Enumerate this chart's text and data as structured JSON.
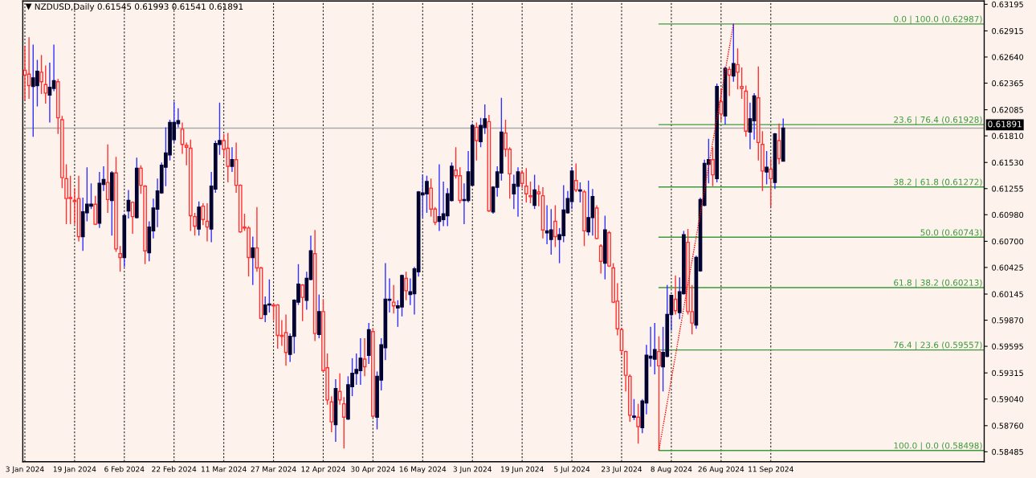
{
  "chart_data": {
    "type": "candlestick",
    "title": "NZDUSD,Daily 0.61545 0.61993 0.61541 0.61891",
    "categories": [
      "3 Jan 2024",
      null,
      null,
      null,
      null,
      null,
      null,
      null,
      null,
      null,
      null,
      null,
      "19 Jan 2024",
      null,
      null,
      null,
      null,
      null,
      null,
      null,
      null,
      null,
      null,
      null,
      "6 Feb 2024",
      null,
      null,
      null,
      null,
      null,
      null,
      null,
      null,
      null,
      null,
      null,
      "22 Feb 2024",
      null,
      null,
      null,
      null,
      null,
      null,
      null,
      null,
      null,
      null,
      null,
      "11 Mar 2024",
      null,
      null,
      null,
      null,
      null,
      null,
      null,
      null,
      null,
      null,
      null,
      "27 Mar 2024",
      null,
      null,
      null,
      null,
      null,
      null,
      null,
      null,
      null,
      null,
      null,
      "12 Apr 2024",
      null,
      null,
      null,
      null,
      null,
      null,
      null,
      null,
      null,
      null,
      null,
      "30 Apr 2024",
      null,
      null,
      null,
      null,
      null,
      null,
      null,
      null,
      null,
      null,
      null,
      "16 May 2024",
      null,
      null,
      null,
      null,
      null,
      null,
      null,
      null,
      null,
      null,
      null,
      "3 Jun 2024",
      null,
      null,
      null,
      null,
      null,
      null,
      null,
      null,
      null,
      null,
      null,
      "19 Jun 2024",
      null,
      null,
      null,
      null,
      null,
      null,
      null,
      null,
      null,
      null,
      null,
      "5 Jul 2024",
      null,
      null,
      null,
      null,
      null,
      null,
      null,
      null,
      null,
      null,
      null,
      "23 Jul 2024",
      null,
      null,
      null,
      null,
      null,
      null,
      null,
      null,
      null,
      null,
      null,
      "8 Aug 2024",
      null,
      null,
      null,
      null,
      null,
      null,
      null,
      null,
      null,
      null,
      null,
      "26 Aug 2024",
      null,
      null,
      null,
      null,
      null,
      null,
      null,
      null,
      null,
      null,
      null,
      "11 Sep 2024",
      null,
      null,
      null,
      null,
      null,
      null,
      null,
      null,
      null,
      null,
      null,
      null,
      null,
      null,
      null,
      null,
      null,
      null,
      null,
      null,
      null,
      null,
      null,
      null,
      null,
      null,
      null,
      null,
      null,
      null,
      null,
      null,
      null,
      null,
      null,
      null,
      null,
      null,
      null,
      null,
      null,
      null,
      null,
      null,
      null,
      null,
      null,
      null,
      null,
      null,
      null
    ],
    "ohlc": [
      [
        0.625,
        0.6276,
        0.6218,
        0.6245
      ],
      [
        0.6246,
        0.6285,
        0.622,
        0.6234
      ],
      [
        0.6233,
        0.6277,
        0.618,
        0.6242
      ],
      [
        0.6234,
        0.6261,
        0.6212,
        0.6249
      ],
      [
        0.6248,
        0.6266,
        0.6225,
        0.6238
      ],
      [
        0.6235,
        0.6255,
        0.6215,
        0.6226
      ],
      [
        0.6224,
        0.6258,
        0.6195,
        0.6232
      ],
      [
        0.6231,
        0.6277,
        0.6228,
        0.6239
      ],
      [
        0.6238,
        0.6241,
        0.6183,
        0.62
      ],
      [
        0.6198,
        0.6202,
        0.6126,
        0.6137
      ],
      [
        0.6136,
        0.6151,
        0.6088,
        0.6115
      ],
      [
        0.6116,
        0.6139,
        0.6088,
        0.6115
      ],
      [
        0.6113,
        0.6126,
        0.6088,
        0.6112
      ],
      [
        0.6115,
        0.6139,
        0.607,
        0.6075
      ],
      [
        0.6075,
        0.6116,
        0.606,
        0.6101
      ],
      [
        0.61,
        0.6148,
        0.6091,
        0.6109
      ],
      [
        0.6107,
        0.6131,
        0.6104,
        0.6109
      ],
      [
        0.6109,
        0.6118,
        0.6087,
        0.6088
      ],
      [
        0.6089,
        0.6143,
        0.6084,
        0.6131
      ],
      [
        0.613,
        0.6149,
        0.6123,
        0.6135
      ],
      [
        0.6132,
        0.6172,
        0.61,
        0.6114
      ],
      [
        0.6113,
        0.6144,
        0.6076,
        0.6142
      ],
      [
        0.6142,
        0.6159,
        0.6059,
        0.6062
      ],
      [
        0.6057,
        0.6065,
        0.6038,
        0.6053
      ],
      [
        0.6053,
        0.6099,
        0.6043,
        0.6097
      ],
      [
        0.6102,
        0.6124,
        0.6094,
        0.6113
      ],
      [
        0.6111,
        0.6112,
        0.6078,
        0.6096
      ],
      [
        0.6095,
        0.6158,
        0.6094,
        0.6147
      ],
      [
        0.6147,
        0.615,
        0.612,
        0.6129
      ],
      [
        0.6128,
        0.6129,
        0.6046,
        0.606
      ],
      [
        0.6058,
        0.6091,
        0.6049,
        0.6085
      ],
      [
        0.6081,
        0.6115,
        0.6073,
        0.6105
      ],
      [
        0.6104,
        0.6136,
        0.6085,
        0.6123
      ],
      [
        0.6121,
        0.6153,
        0.612,
        0.615
      ],
      [
        0.6148,
        0.619,
        0.6128,
        0.6163
      ],
      [
        0.6161,
        0.6198,
        0.6155,
        0.6195
      ],
      [
        0.6177,
        0.6217,
        0.6174,
        0.6195
      ],
      [
        0.6194,
        0.621,
        0.619,
        0.6197
      ],
      [
        0.6188,
        0.6195,
        0.6162,
        0.6172
      ],
      [
        0.6171,
        0.6174,
        0.615,
        0.6169
      ],
      [
        0.6168,
        0.6177,
        0.6081,
        0.6097
      ],
      [
        0.6096,
        0.61,
        0.6076,
        0.6086
      ],
      [
        0.6083,
        0.6112,
        0.6076,
        0.6106
      ],
      [
        0.6107,
        0.611,
        0.6087,
        0.6093
      ],
      [
        0.6091,
        0.611,
        0.607,
        0.6085
      ],
      [
        0.6083,
        0.6143,
        0.6069,
        0.6128
      ],
      [
        0.6125,
        0.6176,
        0.6121,
        0.6173
      ],
      [
        0.6172,
        0.6216,
        0.6161,
        0.6176
      ],
      [
        0.6176,
        0.6183,
        0.6159,
        0.6167
      ],
      [
        0.6168,
        0.6184,
        0.6132,
        0.6149
      ],
      [
        0.6149,
        0.6169,
        0.6143,
        0.6156
      ],
      [
        0.6156,
        0.6174,
        0.6121,
        0.6129
      ],
      [
        0.6129,
        0.613,
        0.6079,
        0.608
      ],
      [
        0.6085,
        0.6099,
        0.6081,
        0.6084
      ],
      [
        0.6084,
        0.6086,
        0.6033,
        0.6053
      ],
      [
        0.6053,
        0.6075,
        0.6024,
        0.6063
      ],
      [
        0.6063,
        0.6106,
        0.6038,
        0.6042
      ],
      [
        0.6042,
        0.6043,
        0.5988,
        0.5989
      ],
      [
        0.5993,
        0.6012,
        0.5985,
        0.6003
      ],
      [
        0.6003,
        0.603,
        0.5995,
        0.6004
      ],
      [
        0.6003,
        0.6005,
        0.5987,
        0.6002
      ],
      [
        0.6003,
        0.6004,
        0.5957,
        0.5971
      ],
      [
        0.5971,
        0.5987,
        0.596,
        0.597
      ],
      [
        0.5974,
        0.5993,
        0.5939,
        0.5953
      ],
      [
        0.5951,
        0.5973,
        0.5943,
        0.597
      ],
      [
        0.597,
        0.6009,
        0.5952,
        0.6008
      ],
      [
        0.6006,
        0.6046,
        0.6003,
        0.6025
      ],
      [
        0.6024,
        0.6025,
        0.5986,
        0.6011
      ],
      [
        0.6008,
        0.6038,
        0.5998,
        0.6031
      ],
      [
        0.603,
        0.6076,
        0.6029,
        0.606
      ],
      [
        0.6057,
        0.6082,
        0.5965,
        0.5973
      ],
      [
        0.5972,
        0.6014,
        0.5968,
        0.5996
      ],
      [
        0.5996,
        0.6009,
        0.5932,
        0.5934
      ],
      [
        0.5937,
        0.5952,
        0.5898,
        0.5903
      ],
      [
        0.5901,
        0.5907,
        0.5869,
        0.588
      ],
      [
        0.5877,
        0.5925,
        0.5859,
        0.5915
      ],
      [
        0.5912,
        0.5931,
        0.5898,
        0.5903
      ],
      [
        0.5899,
        0.5906,
        0.5852,
        0.5885
      ],
      [
        0.5883,
        0.5928,
        0.5882,
        0.5919
      ],
      [
        0.5917,
        0.5947,
        0.5907,
        0.5931
      ],
      [
        0.5931,
        0.5952,
        0.5919,
        0.5935
      ],
      [
        0.5934,
        0.5968,
        0.5919,
        0.5947
      ],
      [
        0.5946,
        0.5968,
        0.5928,
        0.5938
      ],
      [
        0.595,
        0.5984,
        0.5941,
        0.5977
      ],
      [
        0.5975,
        0.5979,
        0.5885,
        0.5886
      ],
      [
        0.5885,
        0.5933,
        0.5872,
        0.5928
      ],
      [
        0.5924,
        0.5968,
        0.5913,
        0.5961
      ],
      [
        0.5958,
        0.6047,
        0.5945,
        0.6009
      ],
      [
        0.6008,
        0.6031,
        0.5995,
        0.6009
      ],
      [
        0.6006,
        0.6024,
        0.5994,
        0.6002
      ],
      [
        0.6,
        0.6008,
        0.598,
        0.6002
      ],
      [
        0.6001,
        0.6035,
        0.5991,
        0.6034
      ],
      [
        0.6031,
        0.6038,
        0.6008,
        0.6018
      ],
      [
        0.6014,
        0.6031,
        0.6003,
        0.6017
      ],
      [
        0.6015,
        0.6043,
        0.5993,
        0.6041
      ],
      [
        0.6038,
        0.6123,
        0.6033,
        0.6122
      ],
      [
        0.6119,
        0.614,
        0.6095,
        0.6121
      ],
      [
        0.612,
        0.6139,
        0.61,
        0.6133
      ],
      [
        0.6126,
        0.6136,
        0.6096,
        0.6104
      ],
      [
        0.6104,
        0.6106,
        0.6087,
        0.609
      ],
      [
        0.6091,
        0.6151,
        0.6081,
        0.6096
      ],
      [
        0.6093,
        0.6133,
        0.6086,
        0.6099
      ],
      [
        0.6097,
        0.6126,
        0.6086,
        0.612
      ],
      [
        0.6113,
        0.6153,
        0.6112,
        0.6149
      ],
      [
        0.6145,
        0.6169,
        0.6136,
        0.6139
      ],
      [
        0.6139,
        0.6148,
        0.611,
        0.6113
      ],
      [
        0.6113,
        0.6131,
        0.6088,
        0.6114
      ],
      [
        0.6113,
        0.6165,
        0.6111,
        0.6143
      ],
      [
        0.6129,
        0.6194,
        0.6128,
        0.6192
      ],
      [
        0.619,
        0.6195,
        0.6155,
        0.6176
      ],
      [
        0.6175,
        0.62,
        0.6169,
        0.6192
      ],
      [
        0.619,
        0.6214,
        0.6183,
        0.6199
      ],
      [
        0.6196,
        0.6203,
        0.6101,
        0.6102
      ],
      [
        0.6101,
        0.6128,
        0.6099,
        0.6127
      ],
      [
        0.6127,
        0.6149,
        0.6117,
        0.6143
      ],
      [
        0.6142,
        0.6221,
        0.6134,
        0.6185
      ],
      [
        0.6184,
        0.6198,
        0.6159,
        0.6167
      ],
      [
        0.6167,
        0.6169,
        0.6115,
        0.6141
      ],
      [
        0.612,
        0.614,
        0.6104,
        0.613
      ],
      [
        0.6128,
        0.6148,
        0.6096,
        0.6143
      ],
      [
        0.6142,
        0.6145,
        0.6126,
        0.6131
      ],
      [
        0.6128,
        0.6147,
        0.6111,
        0.612
      ],
      [
        0.6118,
        0.6133,
        0.611,
        0.6117
      ],
      [
        0.6108,
        0.614,
        0.6104,
        0.6124
      ],
      [
        0.6122,
        0.6129,
        0.6107,
        0.612
      ],
      [
        0.6118,
        0.6127,
        0.6073,
        0.6082
      ],
      [
        0.6079,
        0.6108,
        0.6067,
        0.6081
      ],
      [
        0.6072,
        0.6104,
        0.6056,
        0.6082
      ],
      [
        0.6091,
        0.6108,
        0.6064,
        0.6075
      ],
      [
        0.6072,
        0.6084,
        0.6047,
        0.6077
      ],
      [
        0.6076,
        0.6129,
        0.6069,
        0.6103
      ],
      [
        0.61,
        0.6123,
        0.6099,
        0.6115
      ],
      [
        0.6112,
        0.6148,
        0.6104,
        0.6144
      ],
      [
        0.6134,
        0.6152,
        0.6122,
        0.6124
      ],
      [
        0.6123,
        0.6132,
        0.6111,
        0.6124
      ],
      [
        0.6122,
        0.6124,
        0.6065,
        0.6081
      ],
      [
        0.608,
        0.6134,
        0.6076,
        0.6095
      ],
      [
        0.6095,
        0.6125,
        0.6076,
        0.6117
      ],
      [
        0.6105,
        0.6108,
        0.6072,
        0.6073
      ],
      [
        0.6065,
        0.6067,
        0.6036,
        0.6049
      ],
      [
        0.6047,
        0.6097,
        0.603,
        0.6082
      ],
      [
        0.6079,
        0.6081,
        0.6043,
        0.6044
      ],
      [
        0.6042,
        0.6047,
        0.6005,
        0.6006
      ],
      [
        0.6007,
        0.6026,
        0.5971,
        0.5978
      ],
      [
        0.5977,
        0.5979,
        0.595,
        0.5955
      ],
      [
        0.5954,
        0.5955,
        0.5912,
        0.5929
      ],
      [
        0.5928,
        0.593,
        0.588,
        0.5887
      ],
      [
        0.5885,
        0.5904,
        0.5882,
        0.5886
      ],
      [
        0.5885,
        0.5899,
        0.5857,
        0.5875
      ],
      [
        0.5874,
        0.5904,
        0.5868,
        0.5902
      ],
      [
        0.59,
        0.5961,
        0.5888,
        0.595
      ],
      [
        0.5947,
        0.598,
        0.5938,
        0.5949
      ],
      [
        0.5946,
        0.5984,
        0.593,
        0.5956
      ],
      [
        0.5954,
        0.597,
        0.585,
        0.5939
      ],
      [
        0.5938,
        0.598,
        0.5912,
        0.5953
      ],
      [
        0.5949,
        0.6024,
        0.5948,
        0.5993
      ],
      [
        0.5993,
        0.6014,
        0.5976,
        0.6013
      ],
      [
        0.6009,
        0.6034,
        0.5993,
        0.5997
      ],
      [
        0.5995,
        0.6032,
        0.5988,
        0.6017
      ],
      [
        0.6015,
        0.6081,
        0.6014,
        0.6077
      ],
      [
        0.6069,
        0.6083,
        0.5993,
        0.5996
      ],
      [
        0.5996,
        0.6024,
        0.5972,
        0.5984
      ],
      [
        0.5982,
        0.6055,
        0.5978,
        0.6053
      ],
      [
        0.6039,
        0.6116,
        0.6038,
        0.6114
      ],
      [
        0.6108,
        0.6156,
        0.6107,
        0.6152
      ],
      [
        0.6151,
        0.6178,
        0.6131,
        0.6156
      ],
      [
        0.6156,
        0.6169,
        0.6128,
        0.614
      ],
      [
        0.6136,
        0.6236,
        0.6132,
        0.6233
      ],
      [
        0.6217,
        0.6231,
        0.6197,
        0.6204
      ],
      [
        0.6202,
        0.6254,
        0.6193,
        0.6252
      ],
      [
        0.6251,
        0.6254,
        0.6223,
        0.6245
      ],
      [
        0.6244,
        0.6299,
        0.6238,
        0.6257
      ],
      [
        0.6256,
        0.6273,
        0.623,
        0.6248
      ],
      [
        0.6233,
        0.6253,
        0.622,
        0.6231
      ],
      [
        0.6228,
        0.6234,
        0.618,
        0.6186
      ],
      [
        0.6185,
        0.6216,
        0.6167,
        0.6199
      ],
      [
        0.6197,
        0.6226,
        0.6177,
        0.6223
      ],
      [
        0.6221,
        0.6254,
        0.6155,
        0.6174
      ],
      [
        0.6172,
        0.6186,
        0.6123,
        0.6144
      ],
      [
        0.6143,
        0.6165,
        0.613,
        0.6148
      ],
      [
        0.6146,
        0.6157,
        0.6106,
        0.6136
      ],
      [
        0.6132,
        0.6184,
        0.6125,
        0.6183
      ],
      [
        0.6176,
        0.6194,
        0.6151,
        0.6157
      ],
      [
        0.61545,
        0.61993,
        0.61541,
        0.61891
      ],
      null,
      null,
      null,
      null,
      null,
      null,
      null,
      null,
      null,
      null,
      null,
      null,
      null,
      null,
      null,
      null,
      null,
      null,
      null,
      null,
      null,
      null,
      null,
      null,
      null,
      null,
      null,
      null,
      null,
      null,
      null,
      null,
      null,
      null,
      null,
      null,
      null,
      null,
      null,
      null,
      null,
      null,
      null,
      null,
      null,
      null,
      null,
      null
    ],
    "series": [
      {
        "type": "line",
        "color": "#ff0000",
        "line_style": "dotted",
        "values": [
          null,
          null,
          null,
          null,
          null,
          null,
          null,
          null,
          null,
          null,
          null,
          null,
          null,
          null,
          null,
          null,
          null,
          null,
          null,
          null,
          null,
          null,
          null,
          null,
          null,
          null,
          null,
          null,
          null,
          null,
          null,
          null,
          null,
          null,
          null,
          null,
          null,
          null,
          null,
          null,
          null,
          null,
          null,
          null,
          null,
          null,
          null,
          null,
          null,
          null,
          null,
          null,
          null,
          null,
          null,
          null,
          null,
          null,
          null,
          null,
          null,
          null,
          null,
          null,
          null,
          null,
          null,
          null,
          null,
          null,
          null,
          null,
          null,
          null,
          null,
          null,
          null,
          null,
          null,
          null,
          null,
          null,
          null,
          null,
          null,
          null,
          null,
          null,
          null,
          null,
          null,
          null,
          null,
          null,
          null,
          null,
          null,
          null,
          null,
          null,
          null,
          null,
          null,
          null,
          null,
          null,
          null,
          null,
          null,
          null,
          null,
          null,
          null,
          null,
          null,
          null,
          null,
          null,
          null,
          null,
          null,
          null,
          null,
          null,
          null,
          null,
          null,
          null,
          null,
          null,
          null,
          null,
          null,
          null,
          null,
          null,
          null,
          null,
          null,
          null,
          null,
          null,
          null,
          null,
          null,
          null,
          null,
          null,
          null,
          null,
          null,
          null,
          null,
          0.585,
          null,
          null,
          null,
          null,
          null,
          null,
          null,
          null,
          null,
          null,
          null,
          null,
          null,
          null,
          null,
          null,
          null,
          0.6299,
          null,
          null,
          null,
          null,
          null,
          null,
          null,
          null,
          null,
          null,
          null,
          null,
          null,
          null,
          null,
          null,
          null,
          null,
          null,
          null,
          null,
          null,
          null,
          null,
          null,
          null,
          null,
          null,
          null,
          null,
          null,
          null,
          null,
          null,
          null,
          null,
          null,
          null,
          null,
          null,
          null,
          null,
          null,
          null,
          null,
          null,
          null,
          null,
          null,
          null,
          null,
          null,
          null,
          null,
          null,
          null,
          null,
          null,
          null,
          null
        ]
      }
    ],
    "ylim": [
      0.5838,
      0.6323
    ],
    "yticks": [
      0.63195,
      0.62915,
      {
        "value": 0.6264,
        "label": "0.62640"
      },
      0.62365,
      0.62085,
      {
        "value": 0.6181,
        "label": "0.61810"
      },
      {
        "value": 0.6153,
        "label": "0.61530"
      },
      0.61255,
      {
        "value": 0.6098,
        "label": "0.60980"
      },
      {
        "value": 0.607,
        "label": "0.60700"
      },
      0.60425,
      0.60145,
      {
        "value": 0.5987,
        "label": "0.59870"
      },
      0.59595,
      0.59315,
      {
        "value": 0.5904,
        "label": "0.59040"
      },
      {
        "value": 0.5876,
        "label": "0.58760"
      },
      0.58485
    ],
    "ref_lines": [
      {
        "axis": "y",
        "value": 0.62987,
        "label": "0.0 | 100.0 (0.62987)",
        "color": "#3c9a3c"
      },
      {
        "axis": "y",
        "value": 0.61928,
        "label": "23.6 | 76.4 (0.61928)",
        "color": "#3c9a3c"
      },
      {
        "axis": "y",
        "value": 0.61272,
        "label": "38.2 | 61.8 (0.61272)",
        "color": "#3c9a3c"
      },
      {
        "axis": "y",
        "value": 0.60743,
        "label": "50.0 (0.60743)",
        "color": "#3c9a3c"
      },
      {
        "axis": "y",
        "value": 0.60213,
        "label": "61.8 | 38.2 (0.60213)",
        "color": "#3c9a3c"
      },
      {
        "axis": "y",
        "value": 0.59557,
        "label": "76.4 | 23.6 (0.59557)",
        "color": "#3c9a3c"
      },
      {
        "axis": "y",
        "value": 0.58498,
        "label": "100.0 | 0.0 (0.58498)",
        "color": "#3c9a3c"
      },
      {
        "axis": "y",
        "value": 0.61891,
        "label": "0.61891",
        "color": "#a8a8a8",
        "line_style": "solid"
      }
    ],
    "grid": "x"
  }
}
